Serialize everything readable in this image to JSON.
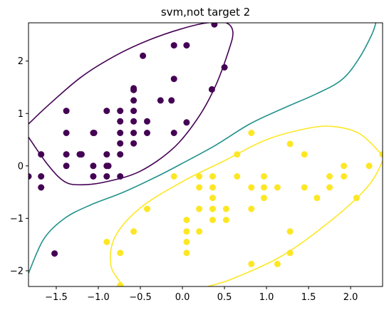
{
  "chart_data": {
    "type": "scatter",
    "title": "svm,not target 2",
    "xlabel": "",
    "ylabel": "",
    "xlim": [
      -1.83,
      2.38
    ],
    "ylim": [
      -2.3,
      2.73
    ],
    "grid": false,
    "x_ticks": [
      -1.5,
      -1.0,
      -0.5,
      0.0,
      0.5,
      1.0,
      1.5,
      2.0
    ],
    "x_tick_labels": [
      "−1.5",
      "−1.0",
      "−0.5",
      "0.0",
      "0.5",
      "1.0",
      "1.5",
      "2.0"
    ],
    "y_ticks": [
      -2,
      -1,
      0,
      1,
      2
    ],
    "y_tick_labels": [
      "−2",
      "−1",
      "0",
      "1",
      "2"
    ],
    "colors": {
      "class_dark": "#440154",
      "class_yellow": "#fde725",
      "boundary_teal": "#21918c"
    },
    "series": [
      {
        "class": "dark",
        "points": [
          [
            -0.1,
            2.3
          ],
          [
            0.05,
            2.3
          ],
          [
            0.38,
            2.7
          ],
          [
            -0.47,
            2.1
          ],
          [
            0.5,
            1.88
          ],
          [
            -0.1,
            1.66
          ],
          [
            -0.58,
            1.48
          ],
          [
            0.35,
            1.46
          ],
          [
            -0.58,
            1.45
          ],
          [
            -0.58,
            1.25
          ],
          [
            -0.26,
            1.25
          ],
          [
            -0.13,
            1.25
          ],
          [
            -1.38,
            1.05
          ],
          [
            -0.9,
            1.05
          ],
          [
            -0.74,
            1.05
          ],
          [
            -0.58,
            1.05
          ],
          [
            -0.74,
            0.85
          ],
          [
            -0.58,
            0.85
          ],
          [
            -0.42,
            0.85
          ],
          [
            0.05,
            0.83
          ],
          [
            -1.38,
            0.63
          ],
          [
            -1.06,
            0.63
          ],
          [
            -1.05,
            0.63
          ],
          [
            -0.74,
            0.63
          ],
          [
            -0.58,
            0.63
          ],
          [
            -0.42,
            0.63
          ],
          [
            -0.1,
            0.63
          ],
          [
            -0.74,
            0.43
          ],
          [
            -0.58,
            0.43
          ],
          [
            -1.68,
            0.22
          ],
          [
            -1.38,
            0.22
          ],
          [
            -1.22,
            0.22
          ],
          [
            -1.2,
            0.22
          ],
          [
            -0.9,
            0.22
          ],
          [
            -0.74,
            0.22
          ],
          [
            -1.38,
            0.0
          ],
          [
            -1.06,
            0.0
          ],
          [
            -0.9,
            0.0
          ],
          [
            -0.88,
            0.0
          ],
          [
            -1.83,
            -0.2
          ],
          [
            -1.68,
            -0.2
          ],
          [
            -1.06,
            -0.2
          ],
          [
            -0.9,
            -0.2
          ],
          [
            -0.74,
            -0.2
          ],
          [
            -1.68,
            -0.41
          ],
          [
            -1.52,
            -1.67
          ]
        ]
      },
      {
        "class": "yellow",
        "points": [
          [
            0.82,
            0.63
          ],
          [
            0.65,
            0.22
          ],
          [
            1.28,
            0.42
          ],
          [
            1.45,
            0.22
          ],
          [
            2.38,
            0.22
          ],
          [
            1.92,
            0.0
          ],
          [
            2.22,
            0.0
          ],
          [
            -0.1,
            -0.2
          ],
          [
            0.2,
            -0.2
          ],
          [
            0.36,
            -0.2
          ],
          [
            0.65,
            -0.2
          ],
          [
            0.97,
            -0.2
          ],
          [
            1.75,
            -0.2
          ],
          [
            1.92,
            -0.2
          ],
          [
            0.2,
            -0.41
          ],
          [
            0.36,
            -0.41
          ],
          [
            0.82,
            -0.41
          ],
          [
            0.97,
            -0.41
          ],
          [
            1.13,
            -0.41
          ],
          [
            1.45,
            -0.41
          ],
          [
            1.75,
            -0.41
          ],
          [
            0.36,
            -0.61
          ],
          [
            0.97,
            -0.61
          ],
          [
            1.6,
            -0.61
          ],
          [
            2.07,
            -0.61
          ],
          [
            -0.42,
            -0.82
          ],
          [
            0.2,
            -0.82
          ],
          [
            0.36,
            -0.82
          ],
          [
            0.52,
            -0.82
          ],
          [
            0.82,
            -0.82
          ],
          [
            0.05,
            -1.03
          ],
          [
            0.36,
            -1.03
          ],
          [
            0.52,
            -1.03
          ],
          [
            -0.58,
            -1.25
          ],
          [
            0.05,
            -1.25
          ],
          [
            0.2,
            -1.25
          ],
          [
            1.28,
            -1.25
          ],
          [
            -0.9,
            -1.45
          ],
          [
            0.05,
            -1.45
          ],
          [
            -0.74,
            -1.66
          ],
          [
            0.05,
            -1.66
          ],
          [
            1.28,
            -1.66
          ],
          [
            0.82,
            -1.87
          ],
          [
            1.13,
            -1.87
          ],
          [
            -0.74,
            -2.28
          ]
        ]
      }
    ],
    "contours": [
      {
        "class": "dark",
        "path": [
          [
            -1.83,
            0.55
          ],
          [
            -1.6,
            0.02
          ],
          [
            -1.4,
            -0.3
          ],
          [
            -1.2,
            -0.36
          ],
          [
            -0.9,
            -0.3
          ],
          [
            -0.5,
            -0.1
          ],
          [
            -0.1,
            0.35
          ],
          [
            0.2,
            0.95
          ],
          [
            0.4,
            1.55
          ],
          [
            0.55,
            2.2
          ],
          [
            0.6,
            2.55
          ],
          [
            0.52,
            2.73
          ],
          [
            0.3,
            2.73
          ],
          [
            0.0,
            2.62
          ],
          [
            -0.4,
            2.4
          ],
          [
            -0.8,
            2.1
          ],
          [
            -1.2,
            1.7
          ],
          [
            -1.6,
            1.15
          ],
          [
            -1.83,
            0.8
          ]
        ]
      },
      {
        "class": "boundary",
        "path": [
          [
            -1.83,
            -2.05
          ],
          [
            -1.65,
            -1.4
          ],
          [
            -1.4,
            -1.0
          ],
          [
            -1.1,
            -0.75
          ],
          [
            -0.7,
            -0.5
          ],
          [
            -0.3,
            -0.2
          ],
          [
            0.0,
            0.05
          ],
          [
            0.4,
            0.4
          ],
          [
            0.8,
            0.8
          ],
          [
            1.2,
            1.1
          ],
          [
            1.6,
            1.38
          ],
          [
            1.9,
            1.65
          ],
          [
            2.1,
            2.05
          ],
          [
            2.25,
            2.5
          ],
          [
            2.3,
            2.73
          ]
        ]
      },
      {
        "class": "yellow",
        "path": [
          [
            -0.7,
            -2.3
          ],
          [
            -0.85,
            -1.9
          ],
          [
            -0.8,
            -1.35
          ],
          [
            -0.5,
            -0.8
          ],
          [
            0.0,
            -0.3
          ],
          [
            0.5,
            0.1
          ],
          [
            1.0,
            0.5
          ],
          [
            1.5,
            0.72
          ],
          [
            1.8,
            0.75
          ],
          [
            2.1,
            0.62
          ],
          [
            2.35,
            0.25
          ],
          [
            2.38,
            0.1
          ],
          [
            2.2,
            -0.4
          ],
          [
            1.8,
            -1.0
          ],
          [
            1.2,
            -1.7
          ],
          [
            0.6,
            -2.15
          ],
          [
            0.3,
            -2.3
          ]
        ]
      }
    ]
  }
}
